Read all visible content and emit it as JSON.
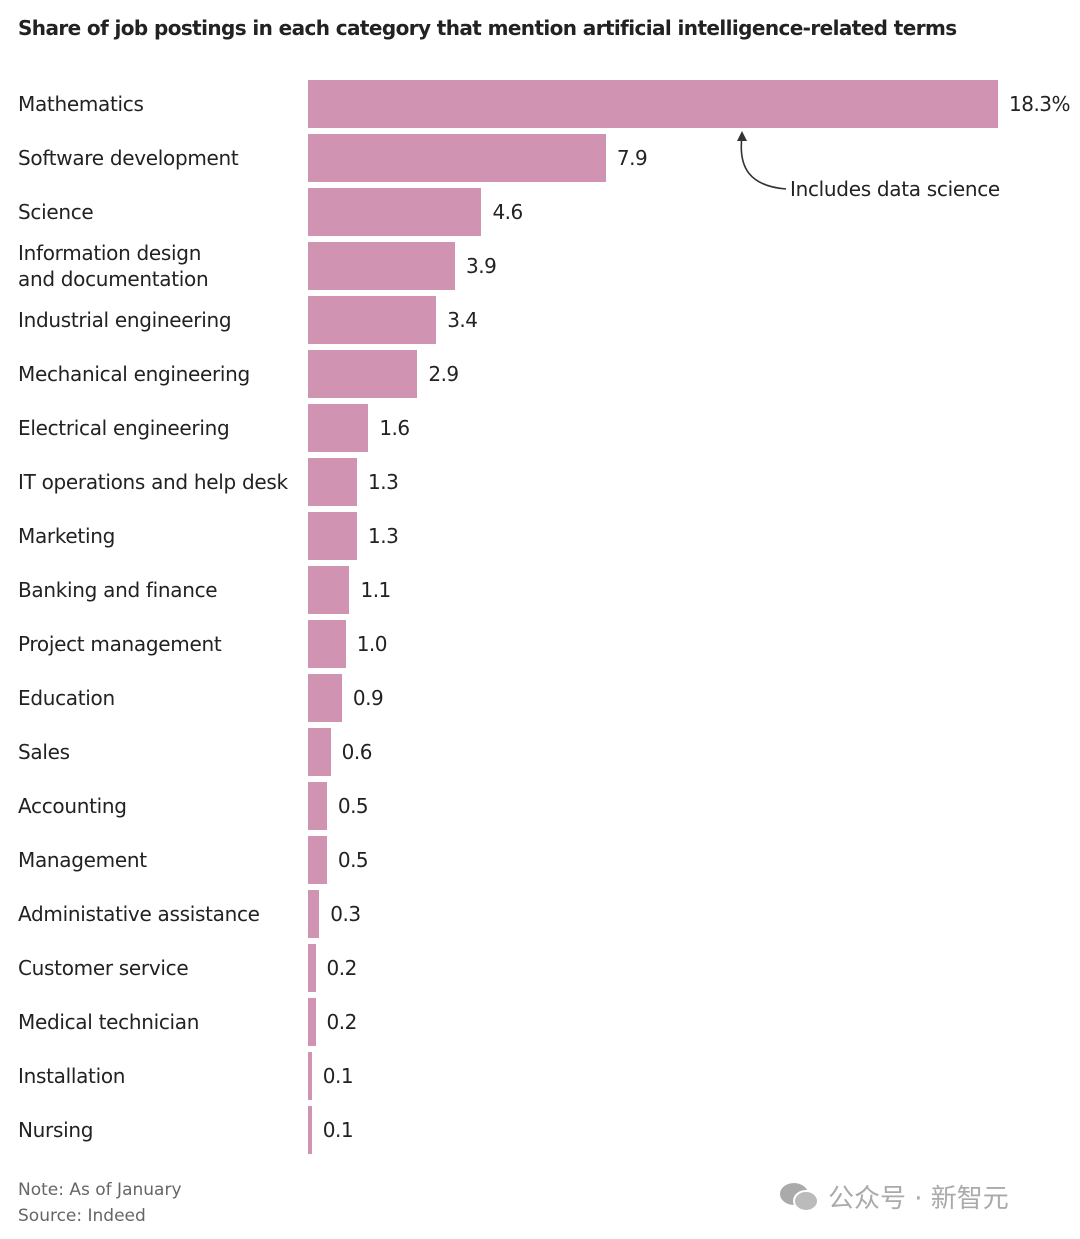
{
  "chart_data": {
    "type": "bar",
    "orientation": "horizontal",
    "title": "Share of job postings in each category that mention artificial intelligence-related terms",
    "categories": [
      "Mathematics",
      "Software development",
      "Science",
      "Information design\nand documentation",
      "Industrial engineering",
      "Mechanical engineering",
      "Electrical engineering",
      "IT operations and help desk",
      "Marketing",
      "Banking and finance",
      "Project management",
      "Education",
      "Sales",
      "Accounting",
      "Management",
      "Administative assistance",
      "Customer service",
      "Medical technician",
      "Installation",
      "Nursing"
    ],
    "values": [
      18.3,
      7.9,
      4.6,
      3.9,
      3.4,
      2.9,
      1.6,
      1.3,
      1.3,
      1.1,
      1.0,
      0.9,
      0.6,
      0.5,
      0.5,
      0.3,
      0.2,
      0.2,
      0.1,
      0.1
    ],
    "value_labels": [
      "18.3%",
      "7.9",
      "4.6",
      "3.9",
      "3.4",
      "2.9",
      "1.6",
      "1.3",
      "1.3",
      "1.1",
      "1.0",
      "0.9",
      "0.6",
      "0.5",
      "0.5",
      "0.3",
      "0.2",
      "0.2",
      "0.1",
      "0.1"
    ],
    "unit": "%",
    "xlim": [
      0,
      18.3
    ],
    "grid": false,
    "annotation": "Includes data science",
    "bar_color": "#d094b2"
  },
  "footer": {
    "note": "Note: As of January",
    "source": "Source: Indeed"
  },
  "watermark": {
    "text": "公众号 · 新智元",
    "icon": "wechat-icon"
  }
}
